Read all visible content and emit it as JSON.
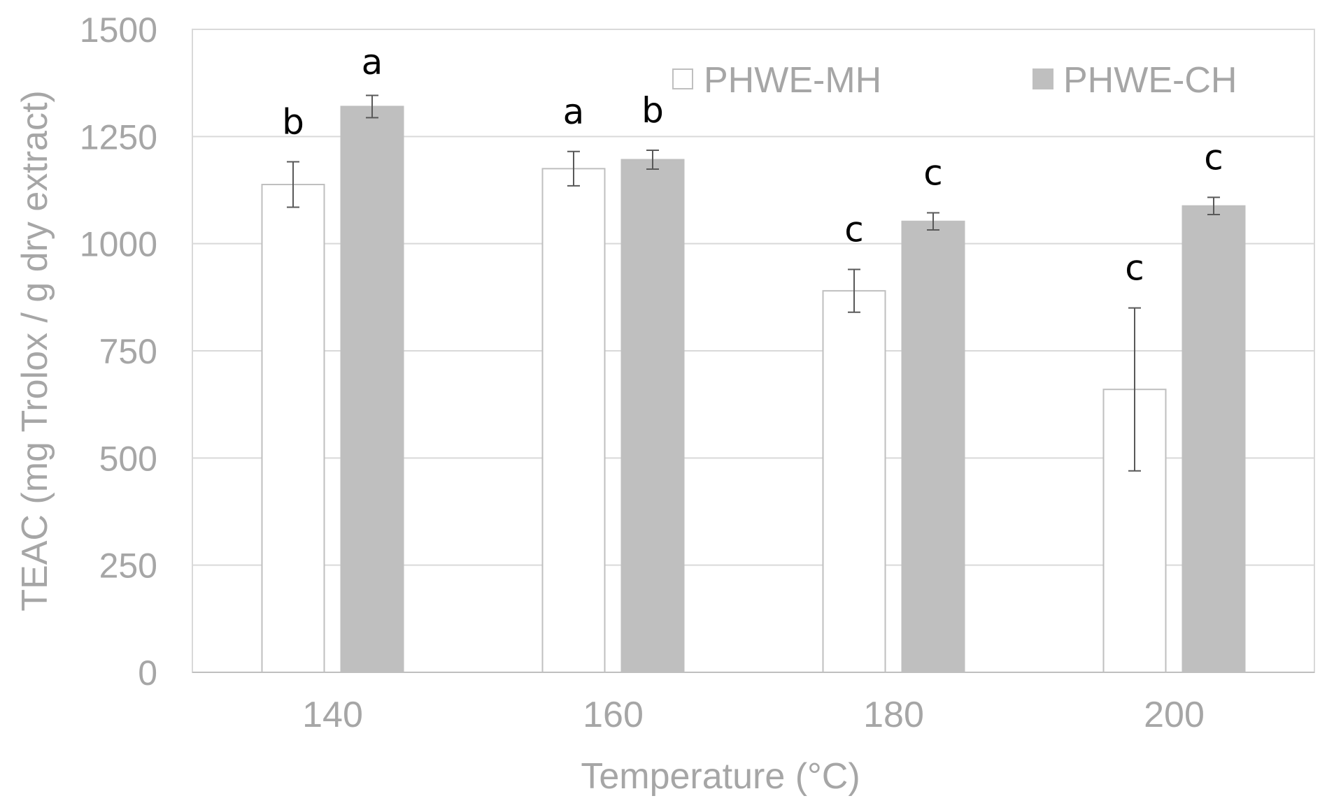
{
  "chart_data": {
    "type": "bar",
    "xlabel": "Temperature (°C)",
    "ylabel": "TEAC (mg Trolox / g dry extract)",
    "ylim": [
      0,
      1500
    ],
    "yticks": [
      "0",
      "250",
      "500",
      "750",
      "1000",
      "1250",
      "1500"
    ],
    "categories": [
      "140",
      "160",
      "180",
      "200"
    ],
    "grid": true,
    "legend_position": "top-right",
    "series": [
      {
        "name": "PHWE-MH",
        "fill": "#ffffff",
        "stroke": "#bfbfbf",
        "values": [
          1138,
          1175,
          890,
          660
        ],
        "errors": [
          53,
          40,
          50,
          190
        ],
        "letters": [
          "b",
          "a",
          "c",
          "c"
        ]
      },
      {
        "name": "PHWE-CH",
        "fill": "#bfbfbf",
        "stroke": "#bfbfbf",
        "values": [
          1320,
          1196,
          1052,
          1088
        ],
        "errors": [
          26,
          22,
          20,
          20
        ],
        "letters": [
          "a",
          "b",
          "c",
          "c"
        ]
      }
    ]
  }
}
